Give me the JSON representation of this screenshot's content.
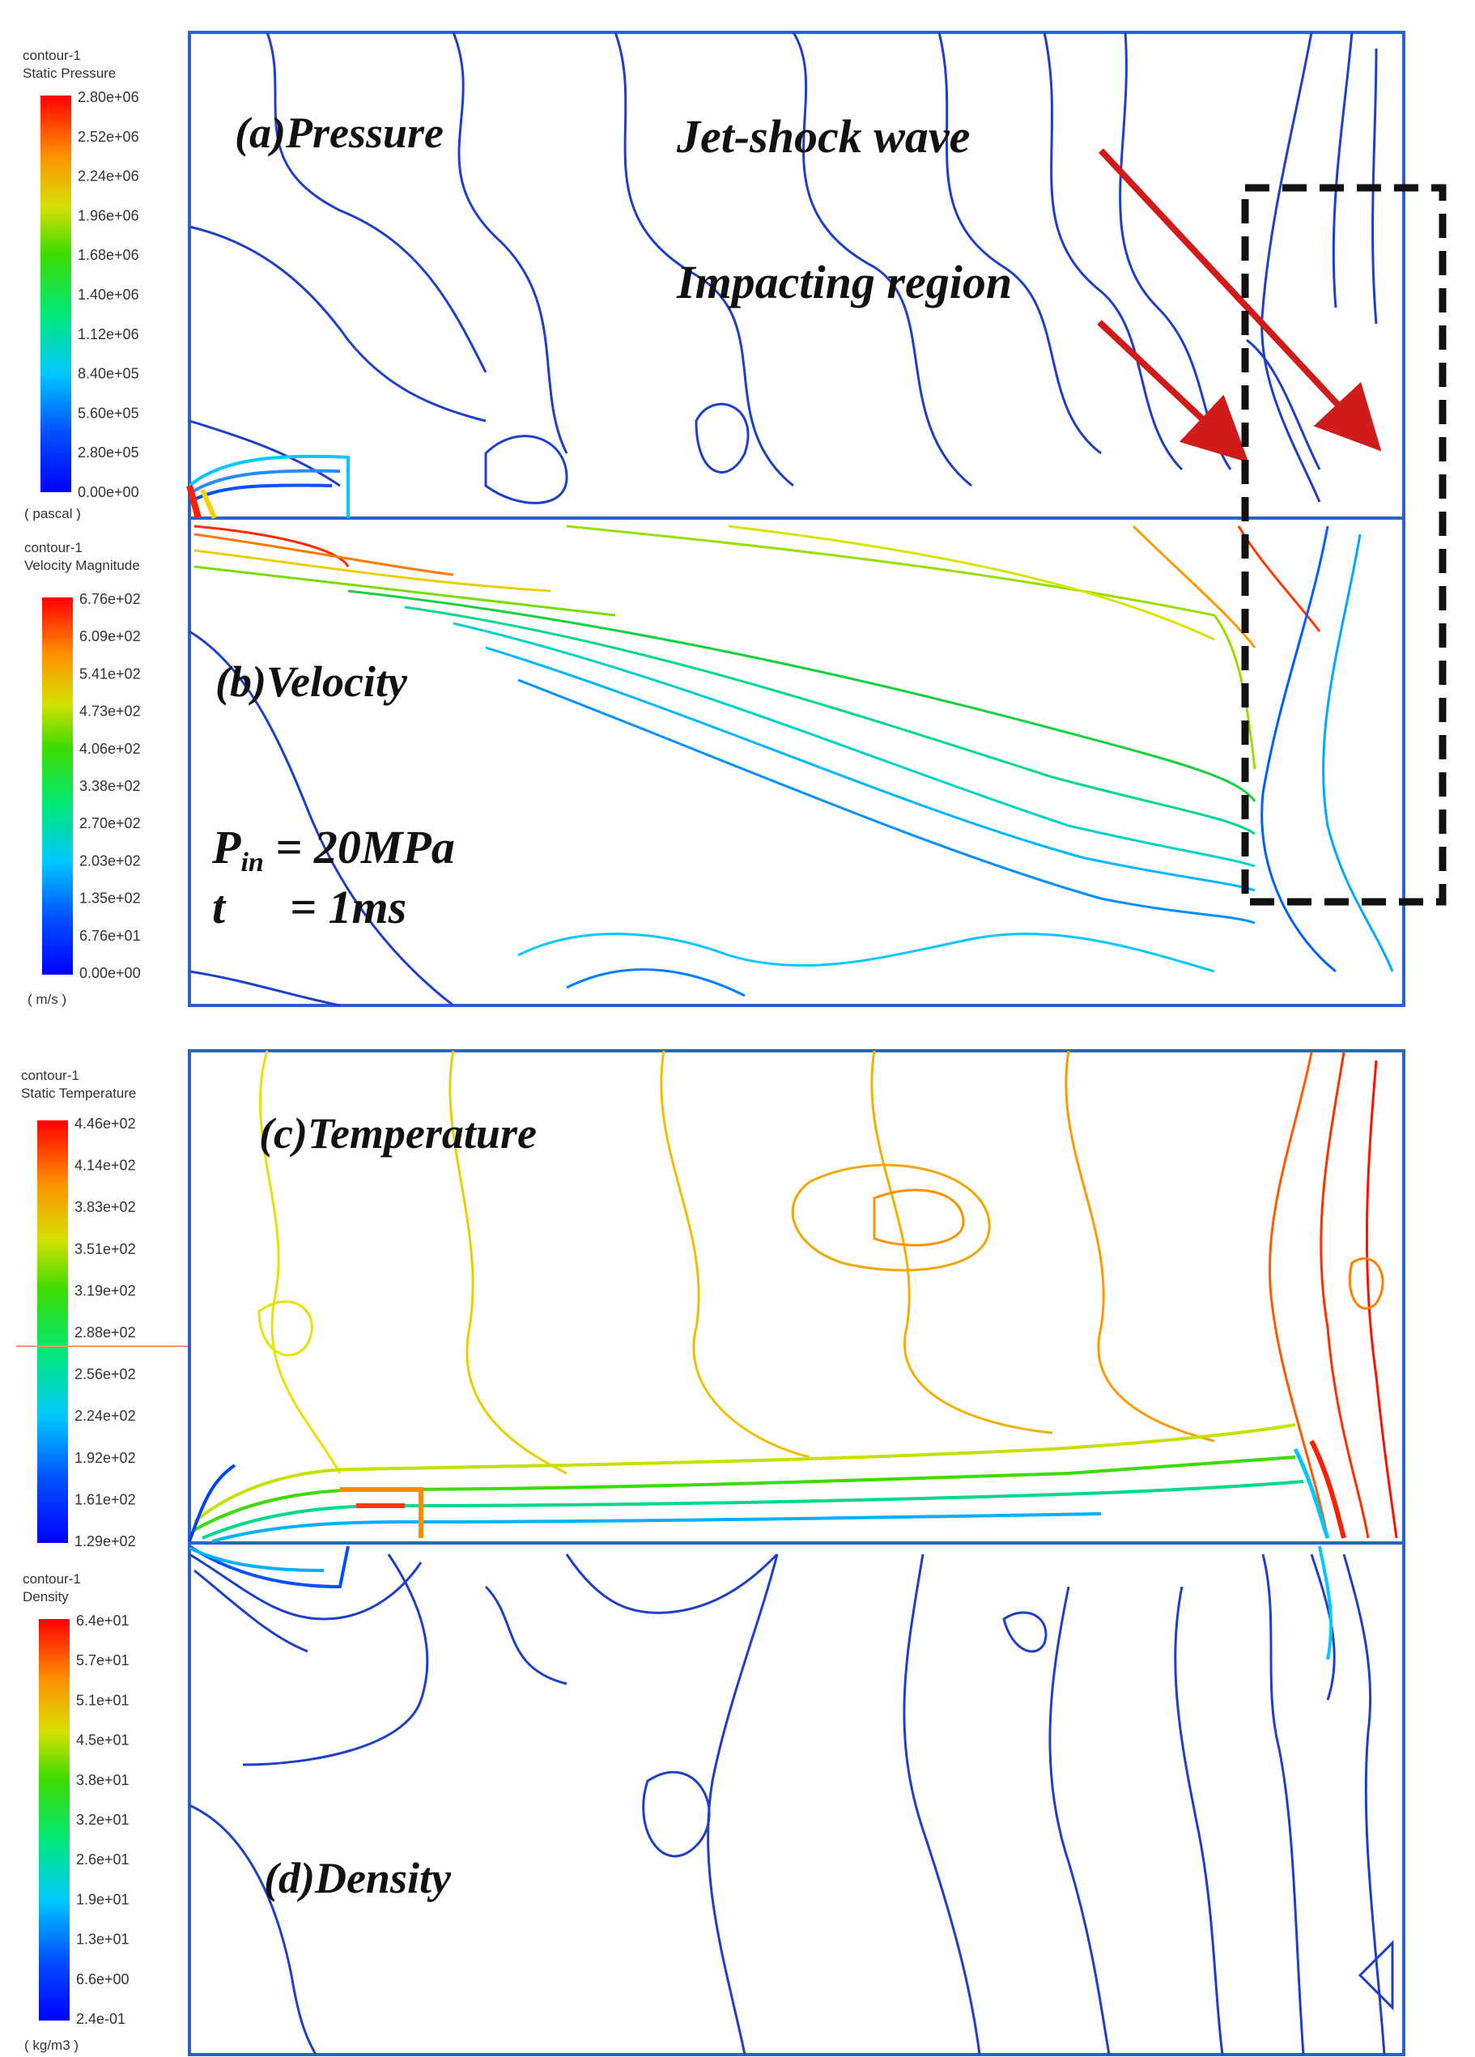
{
  "panels": [
    {
      "id": "a",
      "label": "(a)Pressure",
      "colorbar": {
        "title1": "contour-1",
        "title2": "Static Pressure",
        "ticks": [
          "2.80e+06",
          "2.52e+06",
          "2.24e+06",
          "1.96e+06",
          "1.68e+06",
          "1.40e+06",
          "1.12e+06",
          "8.40e+05",
          "5.60e+05",
          "2.80e+05",
          "0.00e+00"
        ],
        "unit": "( pascal )"
      }
    },
    {
      "id": "b",
      "label": "(b)Velocity",
      "colorbar": {
        "title1": "contour-1",
        "title2": "Velocity Magnitude",
        "ticks": [
          "6.76e+02",
          "6.09e+02",
          "5.41e+02",
          "4.73e+02",
          "4.06e+02",
          "3.38e+02",
          "2.70e+02",
          "2.03e+02",
          "1.35e+02",
          "6.76e+01",
          "0.00e+00"
        ],
        "unit": "( m/s )"
      }
    },
    {
      "id": "c",
      "label": "(c)Temperature",
      "colorbar": {
        "title1": "contour-1",
        "title2": "Static Temperature",
        "ticks": [
          "4.46e+02",
          "4.14e+02",
          "3.83e+02",
          "3.51e+02",
          "3.19e+02",
          "2.88e+02",
          "2.56e+02",
          "2.24e+02",
          "1.92e+02",
          "1.61e+02",
          "1.29e+02"
        ],
        "unit": ""
      }
    },
    {
      "id": "d",
      "label": "(d)Density",
      "colorbar": {
        "title1": "contour-1",
        "title2": "Density",
        "ticks": [
          "6.4e+01",
          "5.7e+01",
          "5.1e+01",
          "4.5e+01",
          "3.8e+01",
          "3.2e+01",
          "2.6e+01",
          "1.9e+01",
          "1.3e+01",
          "6.6e+00",
          "2.4e-01"
        ],
        "unit": "( kg/m3 )"
      }
    }
  ],
  "annotations": {
    "jet_shock": "Jet-shock wave",
    "impact": "Impacting region",
    "p_sym": "P",
    "p_sub": "in",
    "p_val": " = 20MPa",
    "t_sym": "t",
    "t_val": "= 1ms"
  },
  "colors": {
    "frame": "#2a63c9",
    "arrow": "#d11a1a",
    "box": "#111111"
  }
}
